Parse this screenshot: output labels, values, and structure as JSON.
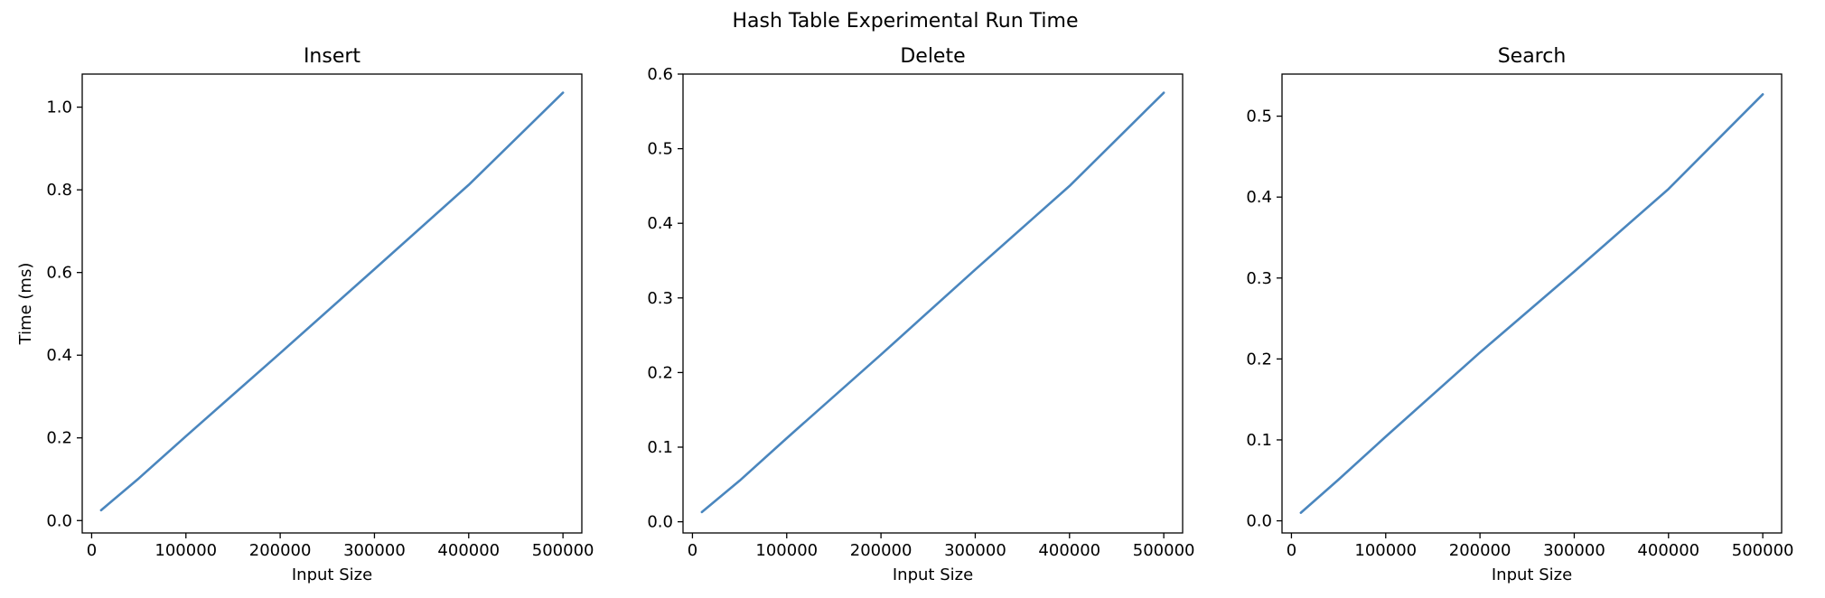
{
  "figure": {
    "suptitle": "Hash Table Experimental Run Time"
  },
  "chart_data": [
    {
      "type": "line",
      "title": "Insert",
      "xlabel": "Input Size",
      "ylabel": "Time (ms)",
      "x": [
        10000,
        50000,
        100000,
        200000,
        300000,
        400000,
        500000
      ],
      "series": [
        {
          "values": [
            0.025,
            0.102,
            0.204,
            0.405,
            0.608,
            0.812,
            1.035
          ]
        }
      ],
      "xlim": [
        -10000,
        520000
      ],
      "ylim": [
        -0.03,
        1.08
      ],
      "xticks": [
        0,
        100000,
        200000,
        300000,
        400000,
        500000
      ],
      "xtick_labels": [
        "0",
        "100000",
        "200000",
        "300000",
        "400000",
        "500000"
      ],
      "yticks": [
        0.0,
        0.2,
        0.4,
        0.6,
        0.8,
        1.0
      ],
      "ytick_labels": [
        "0.0",
        "0.2",
        "0.4",
        "0.6",
        "0.8",
        "1.0"
      ],
      "grid": false,
      "line_color": "#4a86be"
    },
    {
      "type": "line",
      "title": "Delete",
      "xlabel": "Input Size",
      "ylabel": "",
      "x": [
        10000,
        50000,
        100000,
        200000,
        300000,
        400000,
        500000
      ],
      "series": [
        {
          "values": [
            0.013,
            0.055,
            0.112,
            0.224,
            0.338,
            0.45,
            0.575
          ]
        }
      ],
      "xlim": [
        -10000,
        520000
      ],
      "ylim": [
        -0.015,
        0.6
      ],
      "xticks": [
        0,
        100000,
        200000,
        300000,
        400000,
        500000
      ],
      "xtick_labels": [
        "0",
        "100000",
        "200000",
        "300000",
        "400000",
        "500000"
      ],
      "yticks": [
        0.0,
        0.1,
        0.2,
        0.3,
        0.4,
        0.5,
        0.6
      ],
      "ytick_labels": [
        "0.0",
        "0.1",
        "0.2",
        "0.3",
        "0.4",
        "0.5",
        "0.6"
      ],
      "grid": false,
      "line_color": "#4a86be"
    },
    {
      "type": "line",
      "title": "Search",
      "xlabel": "Input Size",
      "ylabel": "",
      "x": [
        10000,
        50000,
        100000,
        200000,
        300000,
        400000,
        500000
      ],
      "series": [
        {
          "values": [
            0.01,
            0.051,
            0.104,
            0.208,
            0.308,
            0.41,
            0.527
          ]
        }
      ],
      "xlim": [
        -10000,
        520000
      ],
      "ylim": [
        -0.015,
        0.552
      ],
      "xticks": [
        0,
        100000,
        200000,
        300000,
        400000,
        500000
      ],
      "xtick_labels": [
        "0",
        "100000",
        "200000",
        "300000",
        "400000",
        "500000"
      ],
      "yticks": [
        0.0,
        0.1,
        0.2,
        0.3,
        0.4,
        0.5
      ],
      "ytick_labels": [
        "0.0",
        "0.1",
        "0.2",
        "0.3",
        "0.4",
        "0.5"
      ],
      "grid": false,
      "line_color": "#4a86be"
    }
  ]
}
